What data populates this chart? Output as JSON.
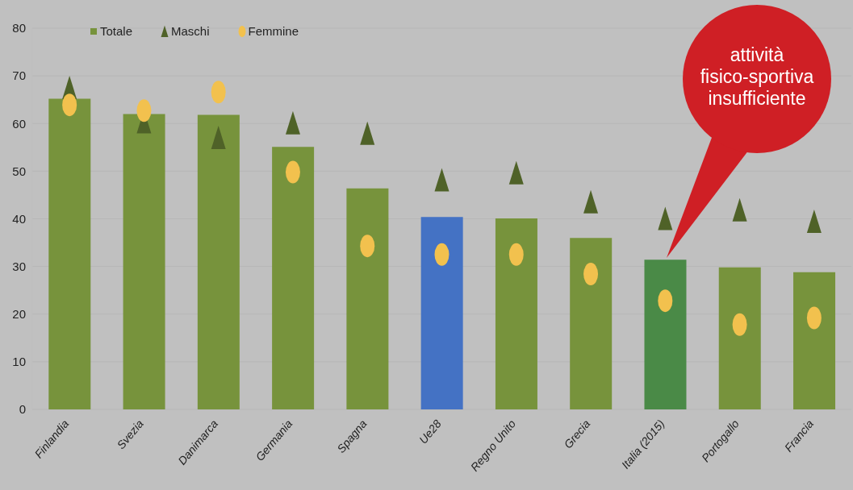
{
  "chart_data": {
    "type": "bar",
    "categories": [
      "Finlandia",
      "Svezia",
      "Danimarca",
      "Germania",
      "Spagna",
      "Ue28",
      "Regno Unito",
      "Grecia",
      "Italia (2015)",
      "Portogallo",
      "Francia"
    ],
    "series": [
      {
        "name": "Totale",
        "color": "#77933c",
        "colors": [
          "#77933c",
          "#77933c",
          "#77933c",
          "#77933c",
          "#77933c",
          "#4472c4",
          "#77933c",
          "#77933c",
          "#4a8a47",
          "#77933c",
          "#77933c"
        ],
        "values": [
          65.2,
          62.0,
          61.8,
          55.1,
          46.4,
          40.4,
          40.1,
          36.0,
          31.4,
          29.8,
          28.8
        ]
      },
      {
        "name": "Maschi",
        "type": "scatter",
        "marker": "triangle",
        "color": "#4f6228",
        "values": [
          67.5,
          60.3,
          57.0,
          60.1,
          57.9,
          48.1,
          49.6,
          43.5,
          40.0,
          41.8,
          39.4
        ]
      },
      {
        "name": "Femmine",
        "type": "scatter",
        "marker": "circle",
        "color": "#f2c14e",
        "values": [
          63.9,
          62.7,
          66.6,
          49.8,
          34.3,
          32.5,
          32.5,
          28.4,
          22.8,
          17.8,
          19.2
        ]
      }
    ],
    "ylim": [
      0,
      80
    ],
    "yticks": [
      0,
      10,
      20,
      30,
      40,
      50,
      60,
      70,
      80
    ],
    "grid": "y",
    "legend": "top left",
    "annotations": [
      "attività fisico-sportiva insufficiente"
    ]
  }
}
